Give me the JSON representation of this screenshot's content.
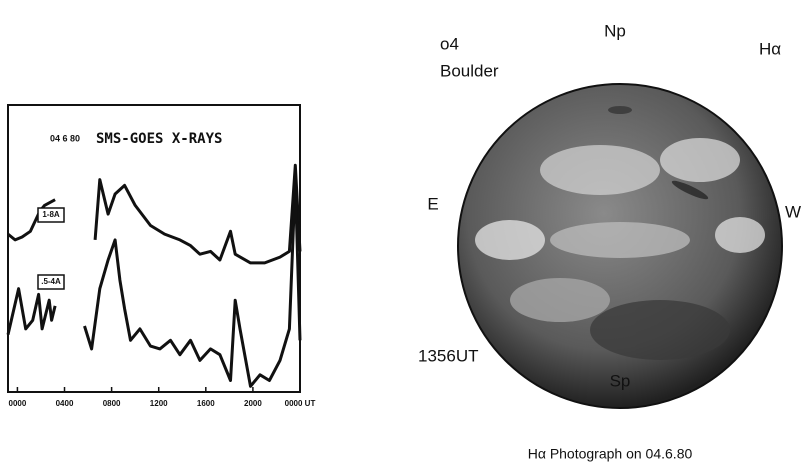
{
  "chart_data": {
    "type": "line",
    "date": "04 6 80",
    "title": "SMS-GOES X-RAYS",
    "xlim": [
      -0.8,
      24
    ],
    "ylim": [
      0,
      10
    ],
    "xticks": [
      {
        "value": 0,
        "label": "0000"
      },
      {
        "value": 4,
        "label": "0400"
      },
      {
        "value": 8,
        "label": "0800"
      },
      {
        "value": 12,
        "label": "1200"
      },
      {
        "value": 16,
        "label": "1600"
      },
      {
        "value": 20,
        "label": "2000"
      },
      {
        "value": 24,
        "label": "0000 UT"
      }
    ],
    "series": [
      {
        "name": "1-8A",
        "color": "#111111",
        "x": [
          -0.8,
          -0.2,
          0.4,
          1.1,
          1.9,
          2.3,
          3.2,
          4.5,
          6.6,
          7.0,
          7.7,
          8.3,
          9.1,
          10.0,
          11.3,
          12.5,
          13.8,
          14.7,
          15.5,
          16.4,
          17.2,
          18.1,
          18.5,
          19.8,
          21.0,
          22.3,
          23.1,
          23.6,
          24.0
        ],
        "values": [
          5.5,
          5.3,
          5.4,
          5.6,
          6.3,
          6.5,
          6.7,
          null,
          5.3,
          7.4,
          6.2,
          6.9,
          7.2,
          6.5,
          5.8,
          5.5,
          5.3,
          5.1,
          4.8,
          4.9,
          4.6,
          5.6,
          4.8,
          4.5,
          4.5,
          4.7,
          4.9,
          7.9,
          4.9
        ]
      },
      {
        "name": ".5-4A",
        "color": "#111111",
        "x": [
          -0.8,
          0.1,
          0.7,
          1.3,
          1.8,
          2.1,
          2.7,
          2.9,
          3.2,
          4.5,
          5.7,
          6.3,
          7.0,
          7.7,
          8.3,
          8.7,
          9.1,
          9.6,
          10.4,
          11.3,
          12.1,
          13.0,
          13.8,
          14.7,
          15.5,
          16.4,
          17.2,
          18.1,
          18.5,
          18.9,
          19.8,
          20.6,
          21.4,
          22.3,
          23.1,
          23.6,
          24.0
        ],
        "values": [
          2.0,
          3.6,
          2.2,
          2.5,
          3.4,
          2.2,
          3.2,
          2.5,
          3.0,
          null,
          2.3,
          1.5,
          3.6,
          4.6,
          5.3,
          3.9,
          2.9,
          1.8,
          2.2,
          1.6,
          1.5,
          1.8,
          1.3,
          1.8,
          1.1,
          1.5,
          1.3,
          0.4,
          3.2,
          2.2,
          0.2,
          0.6,
          0.4,
          1.1,
          2.2,
          7.4,
          1.8
        ]
      }
    ]
  },
  "image": {
    "number": "o4",
    "station": "Boulder",
    "north": "Np",
    "filter": "Hα",
    "east": "E",
    "west": "W",
    "time": "1356UT",
    "south": "Sp",
    "caption": "Hα Photograph on 04.6.80"
  }
}
